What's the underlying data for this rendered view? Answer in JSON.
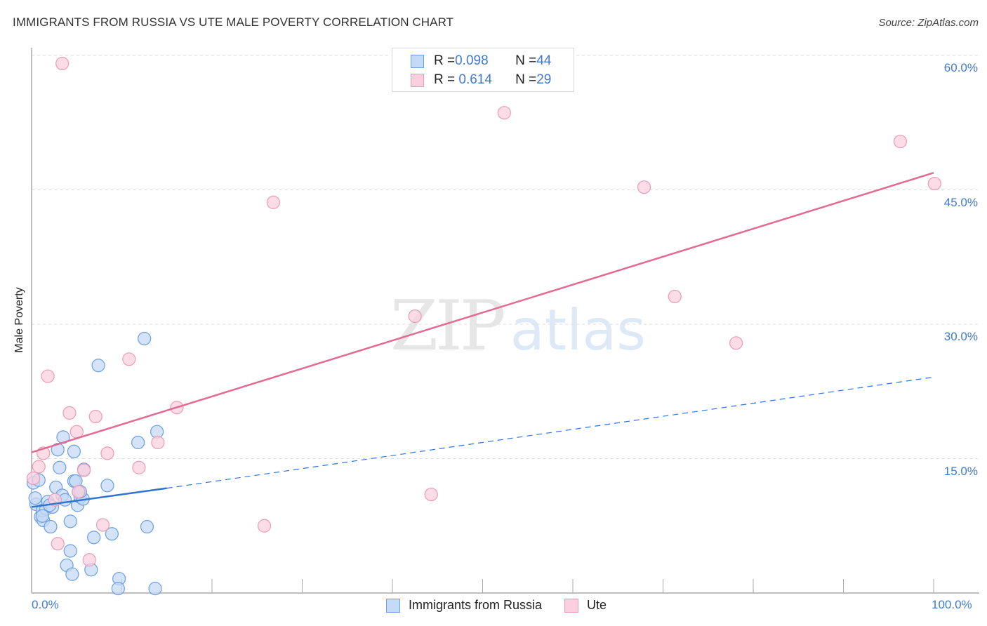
{
  "header": {
    "title": "IMMIGRANTS FROM RUSSIA VS UTE MALE POVERTY CORRELATION CHART",
    "source": "Source: ZipAtlas.com"
  },
  "colors": {
    "blue_fill": "#c5daf5",
    "blue_stroke": "#6a9fe0",
    "blue_line": "#2f74d0",
    "pink_fill": "#fbd0de",
    "pink_stroke": "#ec9bb5",
    "pink_line": "#e36a94",
    "tick_text": "#3f7ad1",
    "grid": "#dddddd"
  },
  "legend_box": {
    "rows": [
      {
        "r_label": "R = ",
        "r_value": "0.098",
        "n_label": "N = ",
        "n_value": "44",
        "series": "blue"
      },
      {
        "r_label": "R = ",
        "r_value": " 0.614",
        "n_label": "N = ",
        "n_value": "29",
        "series": "pink"
      }
    ]
  },
  "bottom_legend": {
    "items": [
      {
        "label": "Immigrants from Russia",
        "series": "blue"
      },
      {
        "label": "Ute",
        "series": "pink"
      }
    ]
  },
  "watermark": {
    "zip": "ZIP",
    "atlas": "atlas"
  },
  "chart_data": {
    "type": "scatter",
    "title": "IMMIGRANTS FROM RUSSIA VS UTE MALE POVERTY CORRELATION CHART",
    "xlabel": "",
    "ylabel": "Male Poverty",
    "xlim": [
      0,
      100
    ],
    "ylim": [
      0,
      60
    ],
    "x_tick_labels": [
      "0.0%",
      "100.0%"
    ],
    "y_tick_labels": [
      "15.0%",
      "30.0%",
      "45.0%",
      "60.0%"
    ],
    "y_ticks": [
      15,
      30,
      45,
      60
    ],
    "x_minor_ticks": [
      0,
      10,
      20,
      30,
      40,
      50,
      60,
      70,
      80,
      90,
      100
    ],
    "grid": "horizontal dashed",
    "legend_position": "top-center and bottom",
    "series": [
      {
        "name": "Immigrants from Russia",
        "color": "#6a9fe0",
        "R": 0.098,
        "N": 44,
        "trend": {
          "x": [
            0,
            15,
            100
          ],
          "y": [
            9.6,
            11.7,
            24.1
          ],
          "solid_until_x": 15
        },
        "points": [
          [
            0.2,
            12.3
          ],
          [
            0.5,
            9.9
          ],
          [
            0.8,
            12.6
          ],
          [
            0.4,
            10.6
          ],
          [
            1.0,
            8.5
          ],
          [
            1.3,
            8.1
          ],
          [
            1.2,
            9.2
          ],
          [
            1.6,
            9.4
          ],
          [
            1.8,
            10.2
          ],
          [
            2.1,
            7.4
          ],
          [
            2.3,
            9.6
          ],
          [
            2.7,
            11.8
          ],
          [
            3.1,
            14.0
          ],
          [
            2.9,
            16.0
          ],
          [
            3.5,
            17.4
          ],
          [
            3.4,
            10.9
          ],
          [
            3.7,
            10.4
          ],
          [
            4.3,
            8.0
          ],
          [
            4.7,
            15.8
          ],
          [
            4.3,
            4.7
          ],
          [
            3.9,
            3.1
          ],
          [
            4.5,
            2.1
          ],
          [
            5.1,
            9.8
          ],
          [
            5.4,
            10.7
          ],
          [
            5.2,
            11.3
          ],
          [
            5.7,
            10.5
          ],
          [
            4.7,
            12.5
          ],
          [
            5.8,
            13.8
          ],
          [
            6.9,
            6.2
          ],
          [
            6.6,
            2.6
          ],
          [
            7.4,
            25.4
          ],
          [
            8.4,
            12.0
          ],
          [
            8.9,
            6.6
          ],
          [
            9.7,
            1.6
          ],
          [
            9.6,
            0.5
          ],
          [
            11.8,
            16.8
          ],
          [
            12.8,
            7.4
          ],
          [
            12.5,
            28.4
          ],
          [
            13.9,
            18.0
          ],
          [
            13.7,
            0.5
          ],
          [
            4.9,
            12.5
          ],
          [
            5.4,
            11.3
          ],
          [
            1.2,
            8.6
          ],
          [
            2.0,
            9.8
          ]
        ]
      },
      {
        "name": "Ute",
        "color": "#ec9bb5",
        "R": 0.614,
        "N": 29,
        "trend": {
          "x": [
            0,
            100
          ],
          "y": [
            15.7,
            46.9
          ]
        },
        "points": [
          [
            3.4,
            59.1
          ],
          [
            52.4,
            53.6
          ],
          [
            96.3,
            50.4
          ],
          [
            100.1,
            45.7
          ],
          [
            67.9,
            45.3
          ],
          [
            26.8,
            43.6
          ],
          [
            71.3,
            33.1
          ],
          [
            42.5,
            30.9
          ],
          [
            78.1,
            27.9
          ],
          [
            10.8,
            26.1
          ],
          [
            1.8,
            24.2
          ],
          [
            16.1,
            20.7
          ],
          [
            4.2,
            20.1
          ],
          [
            7.1,
            19.7
          ],
          [
            5.0,
            18.0
          ],
          [
            14.0,
            16.8
          ],
          [
            1.3,
            15.6
          ],
          [
            8.4,
            15.6
          ],
          [
            0.8,
            14.1
          ],
          [
            11.9,
            14.0
          ],
          [
            5.8,
            13.7
          ],
          [
            5.2,
            11.3
          ],
          [
            2.6,
            10.4
          ],
          [
            44.3,
            11.0
          ],
          [
            7.9,
            7.6
          ],
          [
            25.8,
            7.5
          ],
          [
            2.9,
            5.5
          ],
          [
            6.4,
            3.7
          ],
          [
            0.2,
            12.8
          ]
        ]
      }
    ]
  }
}
